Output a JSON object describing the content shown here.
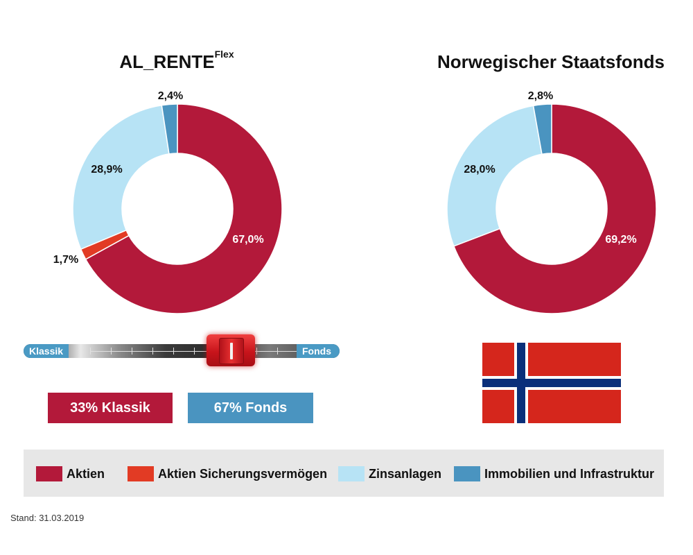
{
  "colors": {
    "aktien": "#b3193a",
    "aktien_sicherung": "#e23b24",
    "zinsanlagen": "#b7e3f5",
    "immobilien": "#4a94c0"
  },
  "chart_data": [
    {
      "type": "pie",
      "title": "AL_RENTE",
      "title_sup": "Flex",
      "slices": [
        {
          "name": "Aktien",
          "value": 67.0,
          "label": "67,0%"
        },
        {
          "name": "Aktien Sicherungsvermögen",
          "value": 1.7,
          "label": "1,7%"
        },
        {
          "name": "Zinsanlagen",
          "value": 28.9,
          "label": "28,9%"
        },
        {
          "name": "Immobilien und Infrastruktur",
          "value": 2.4,
          "label": "2,4%"
        }
      ]
    },
    {
      "type": "pie",
      "title": "Norwegischer Staatsfonds",
      "slices": [
        {
          "name": "Aktien",
          "value": 69.2,
          "label": "69,2%"
        },
        {
          "name": "Zinsanlagen",
          "value": 28.0,
          "label": "28,0%"
        },
        {
          "name": "Immobilien und Infrastruktur",
          "value": 2.8,
          "label": "2,8%"
        }
      ]
    }
  ],
  "slider": {
    "left_label": "Klassik",
    "right_label": "Fonds",
    "position": 0.67
  },
  "boxes": {
    "klassik": "33% Klassik",
    "fonds": "67% Fonds"
  },
  "legend": [
    {
      "label": "Aktien",
      "color": "#b3193a"
    },
    {
      "label": "Aktien Sicherungsvermögen",
      "color": "#e23b24"
    },
    {
      "label": "Zinsanlagen",
      "color": "#b7e3f5"
    },
    {
      "label": "Immobilien und Infrastruktur",
      "color": "#4a94c0"
    }
  ],
  "footer": {
    "stand": "Stand: 31.03.2019"
  }
}
